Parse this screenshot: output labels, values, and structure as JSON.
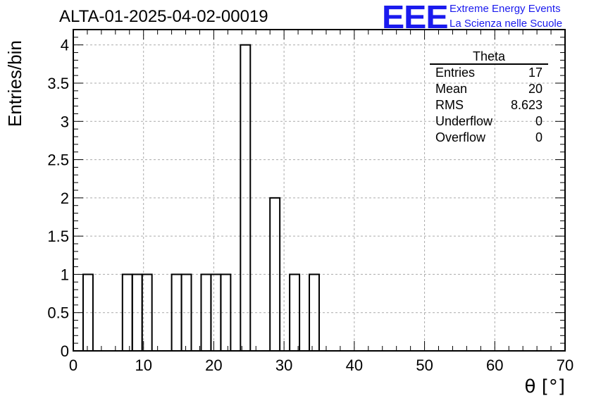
{
  "title": "ALTA-01-2025-04-02-00019",
  "branding": {
    "logo": "EEE",
    "line1": "Extreme Energy Events",
    "line2": "La Scienza nelle Scuole",
    "color": "#1a1aee"
  },
  "stats_box": {
    "title": "Theta",
    "rows": [
      {
        "label": "Entries",
        "value": "17"
      },
      {
        "label": "Mean",
        "value": "20"
      },
      {
        "label": "RMS",
        "value": "8.623"
      },
      {
        "label": "Underflow",
        "value": "0"
      },
      {
        "label": "Overflow",
        "value": "0"
      }
    ]
  },
  "chart_data": {
    "type": "bar",
    "title": "ALTA-01-2025-04-02-00019",
    "xlabel": "θ [°]",
    "ylabel": "Entries/bin",
    "xlim": [
      0,
      70
    ],
    "ylim": [
      0,
      4.2
    ],
    "bin_width": 1.4,
    "bins": [
      {
        "x0": 1.4,
        "x1": 2.8,
        "y": 1
      },
      {
        "x0": 7.0,
        "x1": 8.4,
        "y": 1
      },
      {
        "x0": 8.4,
        "x1": 9.8,
        "y": 1
      },
      {
        "x0": 9.8,
        "x1": 11.2,
        "y": 1
      },
      {
        "x0": 14.0,
        "x1": 15.4,
        "y": 1
      },
      {
        "x0": 15.4,
        "x1": 16.8,
        "y": 1
      },
      {
        "x0": 18.2,
        "x1": 19.6,
        "y": 1
      },
      {
        "x0": 19.6,
        "x1": 21.0,
        "y": 1
      },
      {
        "x0": 21.0,
        "x1": 22.4,
        "y": 1
      },
      {
        "x0": 23.8,
        "x1": 25.2,
        "y": 4
      },
      {
        "x0": 28.0,
        "x1": 29.4,
        "y": 2
      },
      {
        "x0": 30.8,
        "x1": 32.2,
        "y": 1
      },
      {
        "x0": 33.6,
        "x1": 35.0,
        "y": 1
      }
    ],
    "x_ticks": [
      0,
      10,
      20,
      30,
      40,
      50,
      60,
      70
    ],
    "y_ticks": [
      0,
      0.5,
      1,
      1.5,
      2,
      2.5,
      3,
      3.5,
      4
    ],
    "y_tick_labels": [
      "0",
      "0.5",
      "1",
      "1.5",
      "2",
      "2.5",
      "3",
      "3.5",
      "4"
    ],
    "grid": true,
    "line_color": "#000000",
    "grid_color": "#aaaaaa"
  }
}
